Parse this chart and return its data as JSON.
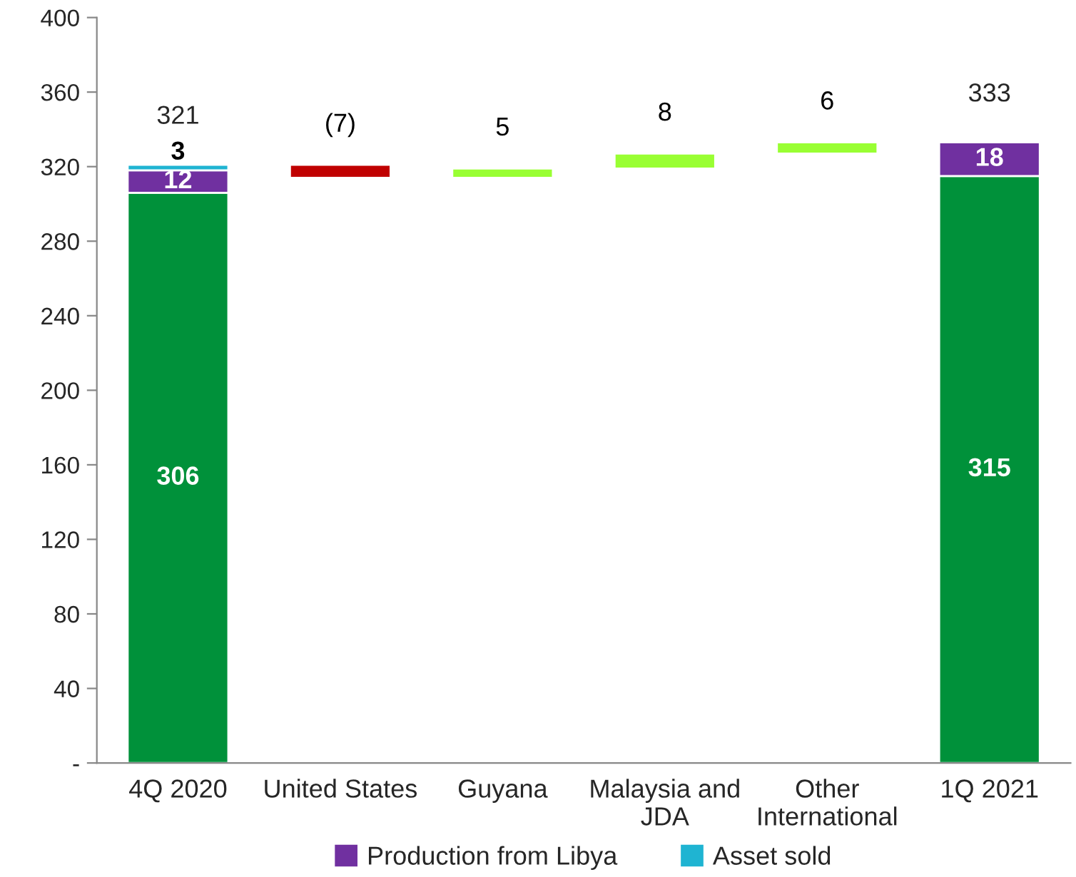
{
  "chart_data": {
    "type": "bar",
    "stacked": true,
    "categories": [
      "4Q 2020",
      "United States",
      "Guyana",
      "Malaysia and\nJDA",
      "Other\nInternational",
      "1Q 2021"
    ],
    "series": [
      {
        "color": "#00913a",
        "values": [
          306,
          null,
          null,
          null,
          null,
          315
        ],
        "value_labels": [
          "306",
          null,
          null,
          null,
          null,
          "315"
        ]
      },
      {
        "name": "Production from Libya",
        "color": "#7030a0",
        "values": [
          12,
          null,
          null,
          null,
          null,
          18
        ],
        "value_labels": [
          "12",
          null,
          null,
          null,
          null,
          "18"
        ]
      },
      {
        "name": "Asset sold",
        "color": "#1fb4d2",
        "values": [
          3,
          null,
          null,
          null,
          null,
          null
        ],
        "value_labels": [
          "3",
          null,
          null,
          null,
          null,
          null
        ]
      },
      {
        "colors": [
          null,
          "#c00000",
          "#99ff33",
          "#99ff33",
          "#99ff33",
          null
        ],
        "values": [
          null,
          -7,
          5,
          8,
          6,
          null
        ],
        "base": [
          null,
          321,
          314,
          319,
          327,
          null
        ],
        "value_labels": [
          null,
          "(7)",
          "5",
          "8",
          "6",
          null
        ]
      }
    ],
    "totals": [
      "321",
      null,
      null,
      null,
      null,
      "333"
    ],
    "ylim": [
      0,
      400
    ],
    "yticks": [
      {
        "value": 0,
        "label": "-"
      },
      40,
      80,
      120,
      160,
      200,
      240,
      280,
      320,
      360,
      400
    ],
    "grid": false,
    "legend": "bottom"
  }
}
